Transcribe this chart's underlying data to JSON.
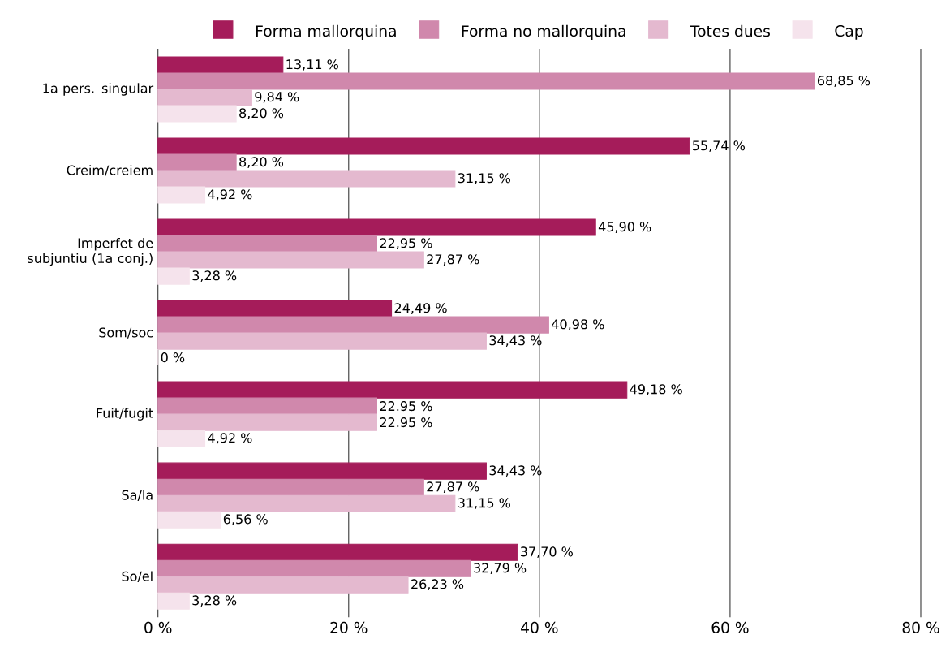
{
  "chart_data": {
    "type": "bar",
    "orientation": "horizontal",
    "categories": [
      "1a pers. singular",
      "Creim/creiem",
      "Imperfet de subjuntiu (1a conj.)",
      "Som/soc",
      "Fuit/fugit",
      "Sa/la",
      "So/el"
    ],
    "series": [
      {
        "name": "Forma mallorquina",
        "color": "#a51c5a",
        "values": [
          13.11,
          55.74,
          45.9,
          24.49,
          49.18,
          34.43,
          37.7
        ],
        "value_labels": [
          "13,11 %",
          "55,74 %",
          "45,90 %",
          "24,49 %",
          "49,18 %",
          "34,43 %",
          "37,70 %"
        ]
      },
      {
        "name": "Forma no mallorquina",
        "color": "#d088ac",
        "values": [
          68.85,
          8.2,
          22.95,
          40.98,
          22.95,
          27.87,
          32.79
        ],
        "value_labels": [
          "68,85 %",
          "8,20 %",
          "22,95 %",
          "40,98 %",
          "22.95 %",
          "27,87 %",
          "32,79 %"
        ]
      },
      {
        "name": "Totes dues",
        "color": "#e4b9cf",
        "values": [
          9.84,
          31.15,
          27.87,
          34.43,
          22.95,
          31.15,
          26.23
        ],
        "value_labels": [
          "9,84 %",
          "31,15 %",
          "27,87 %",
          "34,43 %",
          "22.95 %",
          "31,15 %",
          "26,23 %"
        ]
      },
      {
        "name": "Cap",
        "color": "#f5e3ec",
        "values": [
          8.2,
          4.92,
          3.28,
          0,
          4.92,
          6.56,
          3.28
        ],
        "value_labels": [
          "8,20 %",
          "4,92 %",
          "3,28 %",
          "0 %",
          "4,92 %",
          "6,56 %",
          "3,28 %"
        ]
      }
    ],
    "xlim": [
      0,
      80
    ],
    "xticks": [
      {
        "value": 0,
        "label": "0 %"
      },
      {
        "value": 20,
        "label": "20 %"
      },
      {
        "value": 40,
        "label": "40 %"
      },
      {
        "value": 60,
        "label": "60 %"
      },
      {
        "value": 80,
        "label": "80 %"
      }
    ],
    "grid": "x",
    "legend": "top"
  }
}
